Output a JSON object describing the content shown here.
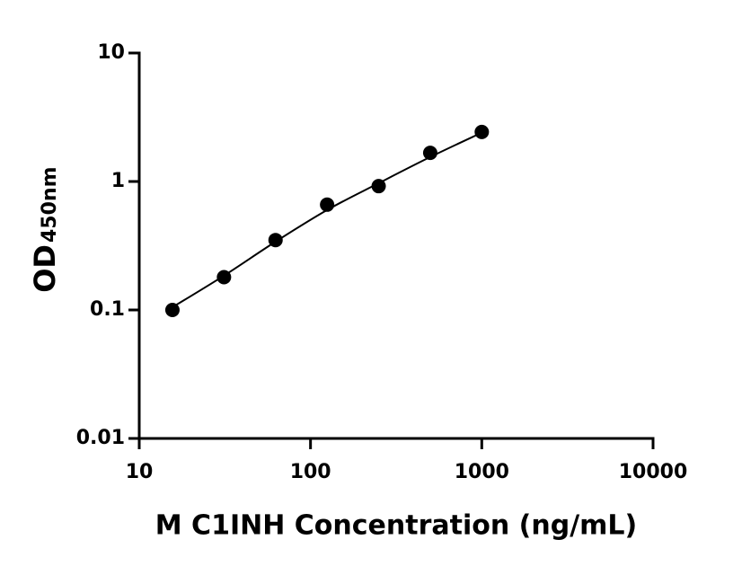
{
  "chart_data": {
    "type": "scatter",
    "log_x": true,
    "log_y": true,
    "color": "#000000",
    "x_label": "M C1INH Concentration (ng/mL)",
    "y_label": "OD",
    "y_label_sub": "450nm",
    "points": {
      "x": [
        15.625,
        31.25,
        62.5,
        125,
        250,
        500,
        1000
      ],
      "values": [
        0.1,
        0.18,
        0.35,
        0.66,
        0.92,
        1.67,
        2.43
      ]
    },
    "curve": {
      "x": [
        15.625,
        31.25,
        62.5,
        125,
        250,
        500,
        1000
      ],
      "values": [
        0.105,
        0.185,
        0.34,
        0.6,
        0.97,
        1.55,
        2.4
      ]
    },
    "xlim": [
      10,
      10000
    ],
    "xticks": [
      10,
      100,
      1000,
      10000
    ],
    "ylim": [
      0.01,
      10
    ],
    "yticks": [
      0.01,
      0.1,
      1,
      10
    ]
  }
}
